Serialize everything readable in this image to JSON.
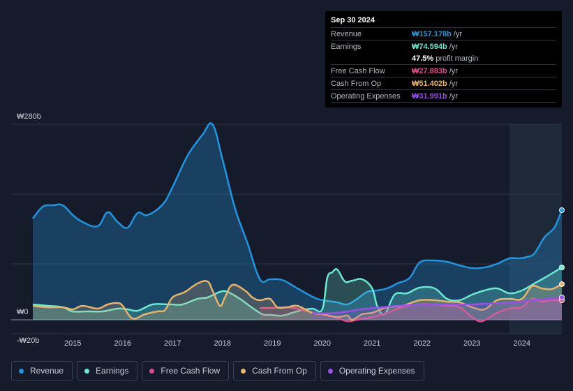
{
  "tooltip": {
    "date": "Sep 30 2024",
    "rows": [
      {
        "label": "Revenue",
        "value": "₩157.178b",
        "unit": "/yr",
        "color": "#2394df"
      },
      {
        "label": "Earnings",
        "value": "₩74.594b",
        "unit": "/yr",
        "color": "#6ce7d0"
      },
      {
        "label": "",
        "value": "47.5%",
        "unit": "profit margin",
        "color": "#ffffff"
      },
      {
        "label": "Free Cash Flow",
        "value": "₩27.883b",
        "unit": "/yr",
        "color": "#d84f8b"
      },
      {
        "label": "Cash From Op",
        "value": "₩51.402b",
        "unit": "/yr",
        "color": "#e8b36c"
      },
      {
        "label": "Operating Expenses",
        "value": "₩31.991b",
        "unit": "/yr",
        "color": "#9a4fe6"
      }
    ]
  },
  "chart_data": {
    "type": "area",
    "title": "",
    "xlabel": "",
    "ylabel": "",
    "ylim": [
      -20,
      280
    ],
    "y_tick_labels": [
      "₩280b",
      "₩0",
      "-₩20b"
    ],
    "x_tick_labels": [
      "2015",
      "2016",
      "2017",
      "2018",
      "2019",
      "2020",
      "2021",
      "2022",
      "2023",
      "2024"
    ],
    "x_ticks": [
      2015,
      2016,
      2017,
      2018,
      2019,
      2020,
      2021,
      2022,
      2023,
      2024
    ],
    "xlim": [
      2014.2,
      2024.8
    ],
    "highlight_start": 2023.75,
    "series": [
      {
        "name": "Revenue",
        "color": "#2394df",
        "fill": true,
        "x": [
          2014.2,
          2014.4,
          2014.6,
          2014.8,
          2015.0,
          2015.2,
          2015.5,
          2015.7,
          2015.9,
          2016.1,
          2016.3,
          2016.5,
          2016.8,
          2017.0,
          2017.3,
          2017.6,
          2017.8,
          2018.0,
          2018.25,
          2018.5,
          2018.75,
          2018.95,
          2019.2,
          2019.5,
          2019.7,
          2019.9,
          2020.1,
          2020.3,
          2020.5,
          2020.7,
          2020.9,
          2021.1,
          2021.3,
          2021.5,
          2021.75,
          2021.95,
          2022.2,
          2022.5,
          2022.75,
          2023.0,
          2023.25,
          2023.5,
          2023.75,
          2023.95,
          2024.1,
          2024.25,
          2024.45,
          2024.65,
          2024.8
        ],
        "values": [
          145,
          162,
          164,
          164,
          150,
          140,
          134,
          154,
          140,
          132,
          153,
          150,
          165,
          190,
          235,
          265,
          280,
          230,
          160,
          110,
          58,
          58,
          57,
          45,
          37,
          30,
          27,
          25,
          22,
          30,
          40,
          42,
          45,
          52,
          60,
          82,
          85,
          83,
          78,
          74,
          75,
          80,
          88,
          88,
          90,
          95,
          118,
          132,
          157
        ]
      },
      {
        "name": "Earnings",
        "color": "#6ce7d0",
        "fill": true,
        "x": [
          2014.2,
          2014.5,
          2014.8,
          2015.0,
          2015.3,
          2015.6,
          2015.9,
          2016.1,
          2016.3,
          2016.6,
          2016.9,
          2017.0,
          2017.2,
          2017.5,
          2017.7,
          2017.95,
          2018.1,
          2018.35,
          2018.6,
          2018.8,
          2018.95,
          2019.2,
          2019.4,
          2019.6,
          2019.8,
          2020.0,
          2020.1,
          2020.2,
          2020.3,
          2020.45,
          2020.6,
          2020.8,
          2021.0,
          2021.1,
          2021.25,
          2021.45,
          2021.7,
          2021.95,
          2022.25,
          2022.5,
          2022.75,
          2023.0,
          2023.25,
          2023.5,
          2023.75,
          2024.0,
          2024.25,
          2024.5,
          2024.8
        ],
        "values": [
          22,
          20,
          18,
          12,
          12,
          12,
          16,
          15,
          13,
          22,
          22,
          22,
          22,
          30,
          32,
          40,
          40,
          30,
          17,
          8,
          7,
          6,
          10,
          14,
          16,
          15,
          60,
          68,
          72,
          55,
          56,
          58,
          45,
          20,
          8,
          36,
          38,
          46,
          45,
          30,
          28,
          36,
          42,
          45,
          38,
          42,
          52,
          62,
          75
        ]
      },
      {
        "name": "Free Cash Flow",
        "color": "#d84f8b",
        "fill": true,
        "x": [
          2018.75,
          2019.0,
          2019.3,
          2019.5,
          2019.7,
          2020.0,
          2020.25,
          2020.5,
          2020.7,
          2021.0,
          2021.3,
          2021.6,
          2021.95,
          2022.25,
          2022.5,
          2022.75,
          2023.0,
          2023.2,
          2023.5,
          2023.75,
          2024.0,
          2024.2,
          2024.4,
          2024.6,
          2024.8
        ],
        "values": [
          17,
          17,
          18,
          16,
          12,
          8,
          4,
          -2,
          0,
          4,
          10,
          18,
          22,
          22,
          20,
          18,
          4,
          -2,
          10,
          16,
          18,
          30,
          26,
          28,
          28
        ]
      },
      {
        "name": "Cash From Op",
        "color": "#e8b36c",
        "fill": true,
        "x": [
          2014.2,
          2014.5,
          2014.8,
          2015.0,
          2015.2,
          2015.5,
          2015.7,
          2015.9,
          2016.0,
          2016.2,
          2016.45,
          2016.7,
          2016.85,
          2017.0,
          2017.25,
          2017.5,
          2017.7,
          2017.8,
          2017.95,
          2018.05,
          2018.2,
          2018.45,
          2018.6,
          2018.75,
          2018.95,
          2019.1,
          2019.3,
          2019.5,
          2019.8,
          2020.0,
          2020.3,
          2020.5,
          2020.6,
          2020.8,
          2021.0,
          2021.3,
          2021.6,
          2021.95,
          2022.25,
          2022.5,
          2022.75,
          2023.0,
          2023.25,
          2023.5,
          2023.75,
          2024.0,
          2024.2,
          2024.4,
          2024.6,
          2024.8
        ],
        "values": [
          20,
          18,
          18,
          15,
          20,
          16,
          22,
          24,
          20,
          2,
          8,
          12,
          14,
          32,
          40,
          52,
          55,
          42,
          20,
          32,
          50,
          42,
          32,
          28,
          30,
          18,
          18,
          20,
          10,
          8,
          4,
          6,
          0,
          8,
          10,
          18,
          20,
          28,
          28,
          26,
          25,
          18,
          15,
          28,
          30,
          30,
          48,
          45,
          44,
          51
        ]
      },
      {
        "name": "Operating Expenses",
        "color": "#9a4fe6",
        "fill": true,
        "x": [
          2019.8,
          2020.0,
          2020.3,
          2020.6,
          2020.9,
          2021.2,
          2021.5,
          2021.8,
          2022.1,
          2022.4,
          2022.7,
          2023.0,
          2023.3,
          2023.6,
          2023.9,
          2024.2,
          2024.5,
          2024.8
        ],
        "values": [
          10,
          9,
          10,
          13,
          16,
          18,
          20,
          21,
          22,
          22,
          22,
          22,
          23,
          24,
          25,
          28,
          30,
          32
        ]
      }
    ]
  },
  "legend": [
    {
      "label": "Revenue",
      "color": "#2394df"
    },
    {
      "label": "Earnings",
      "color": "#6ce7d0"
    },
    {
      "label": "Free Cash Flow",
      "color": "#d84f8b"
    },
    {
      "label": "Cash From Op",
      "color": "#e8b36c"
    },
    {
      "label": "Operating Expenses",
      "color": "#9a4fe6"
    }
  ]
}
